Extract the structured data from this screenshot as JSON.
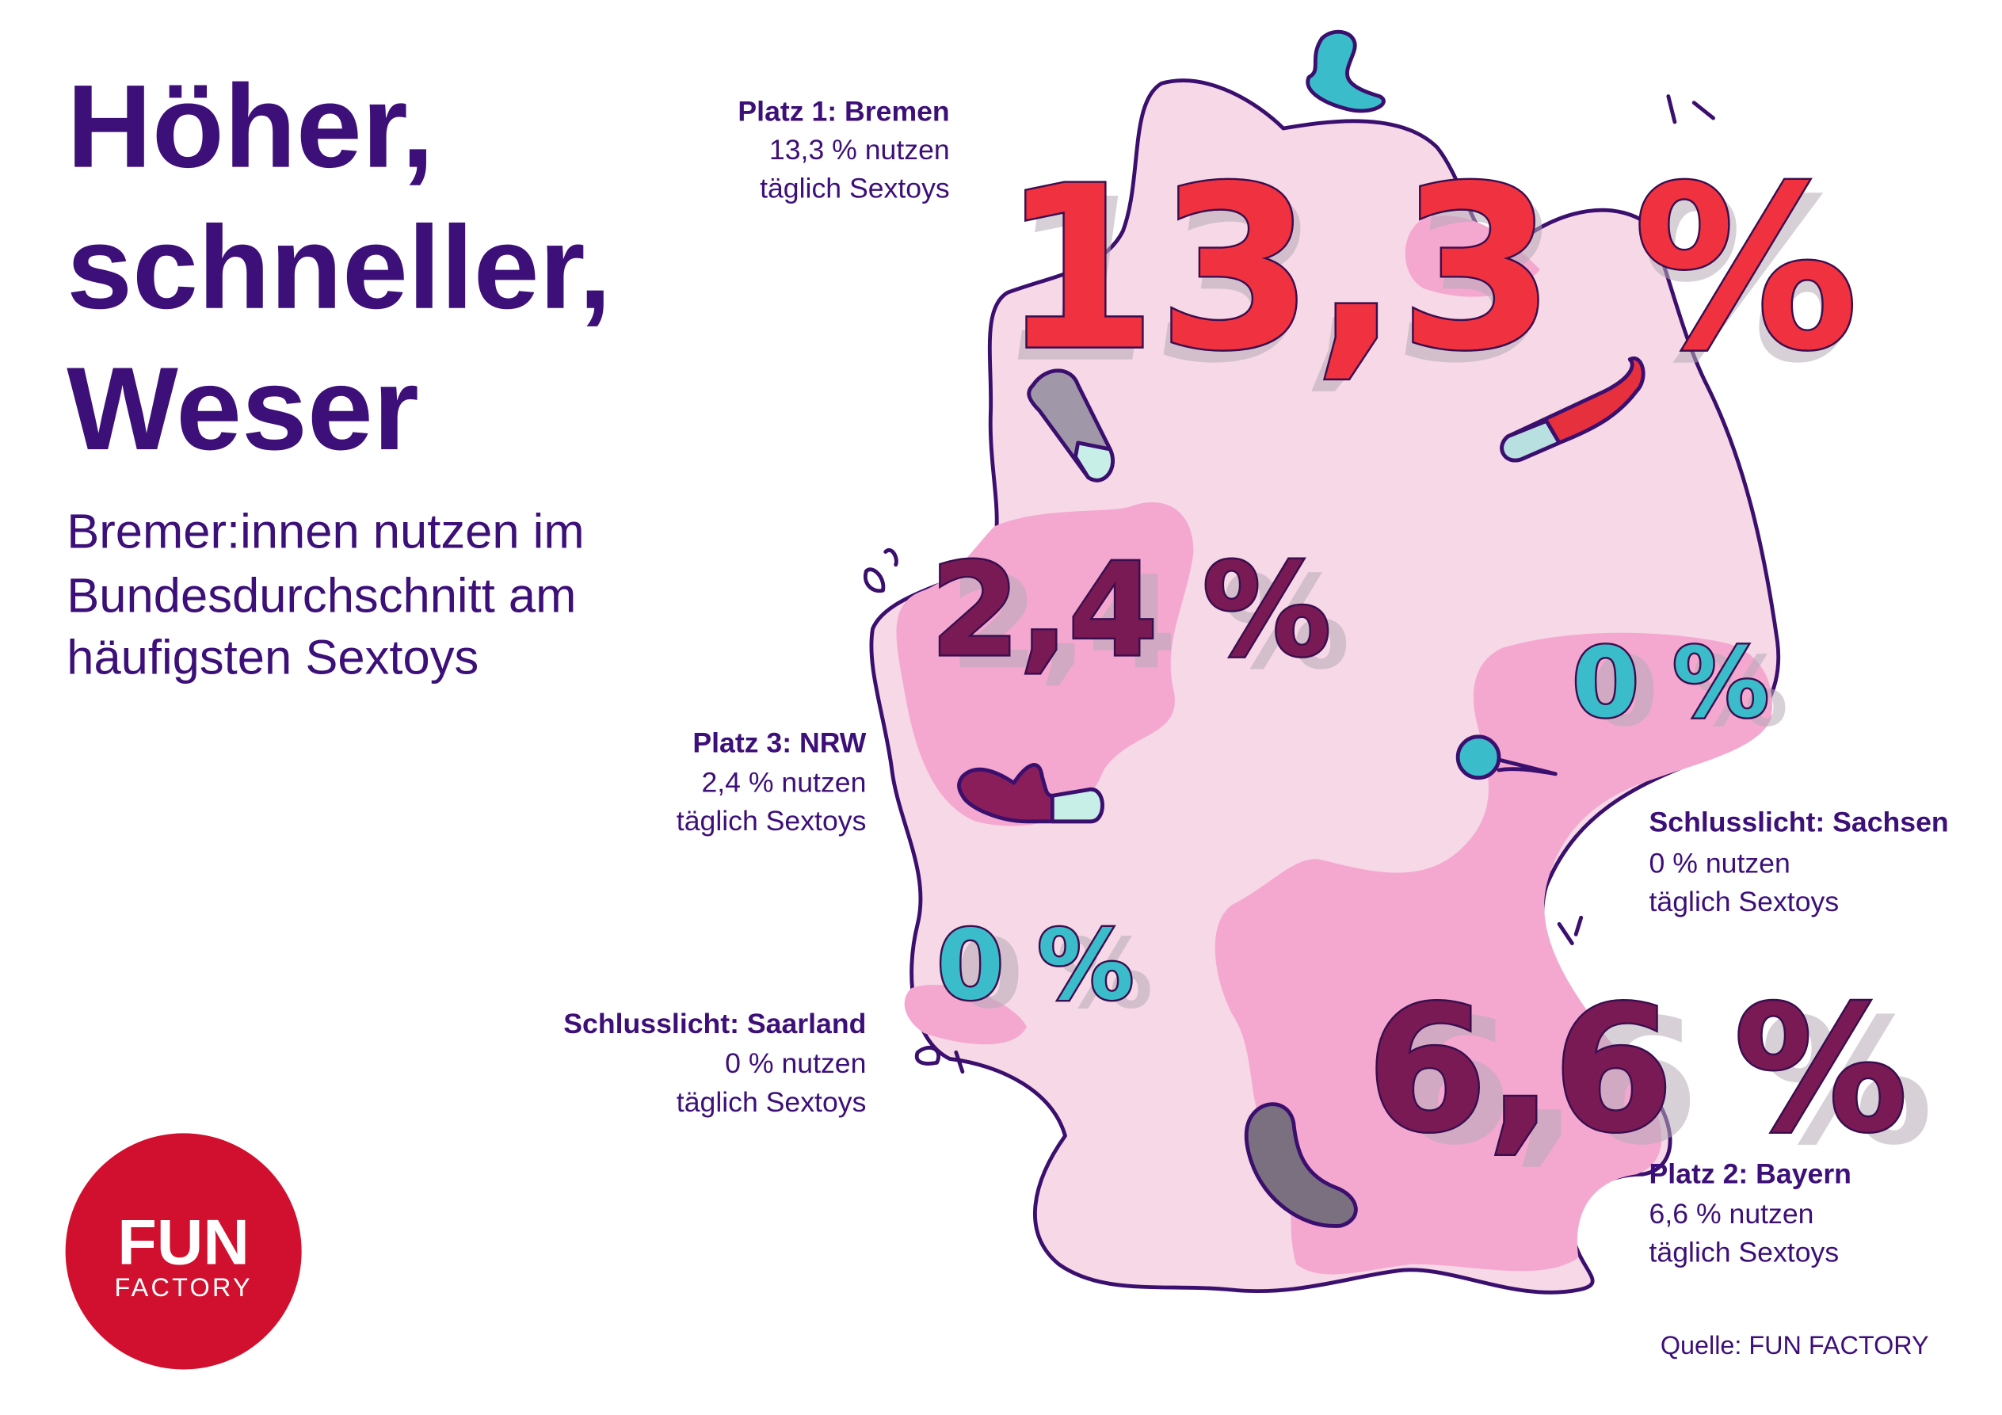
{
  "title_lines": [
    "Höher,",
    "schneller,",
    "Weser"
  ],
  "subtitle_lines": [
    "Bremer:innen nutzen im",
    "Bundesdurchschnitt am",
    "häufigsten Sextoys"
  ],
  "regions": [
    {
      "heading": "Platz 1: Bremen",
      "lines": [
        "13,3 % nutzen",
        "täglich Sextoys"
      ],
      "big_value": "13,3 %"
    },
    {
      "heading": "Platz 3: NRW",
      "lines": [
        "2,4 % nutzen",
        "täglich Sextoys"
      ],
      "big_value": "2,4 %"
    },
    {
      "heading": "Schlusslicht: Saarland",
      "lines": [
        "0 % nutzen",
        "täglich Sextoys"
      ],
      "big_value": "0 %"
    },
    {
      "heading": "Schlusslicht: Sachsen",
      "lines": [
        "0 % nutzen",
        "täglich Sextoys"
      ],
      "big_value": "0 %"
    },
    {
      "heading": "Platz 2: Bayern",
      "lines": [
        "6,6 % nutzen",
        "täglich Sextoys"
      ],
      "big_value": "6,6 %"
    }
  ],
  "logo": {
    "line1": "FUN",
    "line2": "FACTORY"
  },
  "source": "Quelle: FUN FACTORY"
}
